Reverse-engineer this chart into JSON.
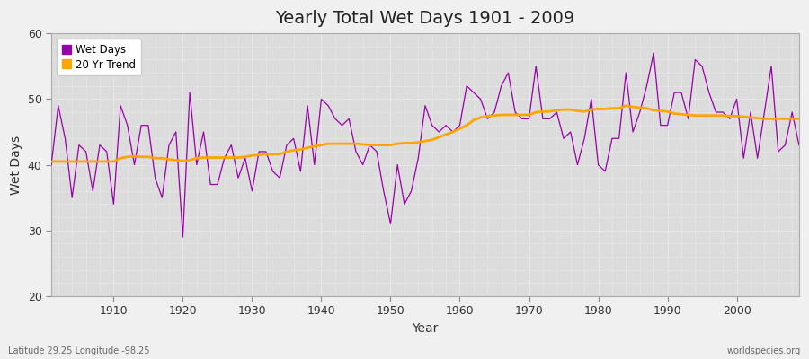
{
  "title": "Yearly Total Wet Days 1901 - 2009",
  "xlabel": "Year",
  "ylabel": "Wet Days",
  "footnote_left": "Latitude 29.25 Longitude -98.25",
  "footnote_right": "worldspecies.org",
  "wet_days_color": "#9900aa",
  "trend_color": "#ffa500",
  "plot_bg_color": "#dcdcdc",
  "fig_bg_color": "#f0f0f0",
  "ylim": [
    20,
    60
  ],
  "yticks": [
    20,
    30,
    40,
    50,
    60
  ],
  "xlim": [
    1901,
    2009
  ],
  "xticks": [
    1910,
    1920,
    1930,
    1940,
    1950,
    1960,
    1970,
    1980,
    1990,
    2000
  ],
  "years": [
    1901,
    1902,
    1903,
    1904,
    1905,
    1906,
    1907,
    1908,
    1909,
    1910,
    1911,
    1912,
    1913,
    1914,
    1915,
    1916,
    1917,
    1918,
    1919,
    1920,
    1921,
    1922,
    1923,
    1924,
    1925,
    1926,
    1927,
    1928,
    1929,
    1930,
    1931,
    1932,
    1933,
    1934,
    1935,
    1936,
    1937,
    1938,
    1939,
    1940,
    1941,
    1942,
    1943,
    1944,
    1945,
    1946,
    1947,
    1948,
    1949,
    1950,
    1951,
    1952,
    1953,
    1954,
    1955,
    1956,
    1957,
    1958,
    1959,
    1960,
    1961,
    1962,
    1963,
    1964,
    1965,
    1966,
    1967,
    1968,
    1969,
    1970,
    1971,
    1972,
    1973,
    1974,
    1975,
    1976,
    1977,
    1978,
    1979,
    1980,
    1981,
    1982,
    1983,
    1984,
    1985,
    1986,
    1987,
    1988,
    1989,
    1990,
    1991,
    1992,
    1993,
    1994,
    1995,
    1996,
    1997,
    1998,
    1999,
    2000,
    2001,
    2002,
    2003,
    2004,
    2005,
    2006,
    2007,
    2008,
    2009
  ],
  "wet_days": [
    40,
    49,
    44,
    35,
    43,
    42,
    36,
    43,
    42,
    34,
    49,
    46,
    40,
    46,
    46,
    38,
    35,
    43,
    45,
    29,
    51,
    40,
    45,
    37,
    37,
    41,
    43,
    38,
    41,
    36,
    42,
    42,
    39,
    38,
    43,
    44,
    39,
    49,
    40,
    50,
    49,
    47,
    46,
    47,
    42,
    40,
    43,
    42,
    36,
    31,
    40,
    34,
    36,
    41,
    49,
    46,
    45,
    46,
    45,
    46,
    52,
    51,
    50,
    47,
    48,
    52,
    54,
    48,
    47,
    47,
    55,
    47,
    47,
    48,
    44,
    45,
    40,
    44,
    50,
    40,
    39,
    44,
    44,
    54,
    45,
    48,
    52,
    57,
    46,
    46,
    51,
    51,
    47,
    56,
    55,
    51,
    48,
    48,
    47,
    50,
    41,
    48,
    41,
    48,
    55,
    42,
    43,
    48,
    43
  ],
  "trend": [
    40.5,
    40.5,
    40.5,
    40.5,
    40.5,
    40.5,
    40.5,
    40.5,
    40.5,
    40.5,
    41.0,
    41.2,
    41.3,
    41.2,
    41.2,
    41.0,
    41.0,
    40.8,
    40.7,
    40.6,
    40.7,
    41.0,
    41.1,
    41.1,
    41.1,
    41.1,
    41.1,
    41.1,
    41.2,
    41.4,
    41.5,
    41.6,
    41.6,
    41.6,
    42.0,
    42.2,
    42.3,
    42.6,
    42.8,
    43.0,
    43.2,
    43.2,
    43.2,
    43.2,
    43.2,
    43.1,
    43.0,
    43.0,
    43.0,
    43.0,
    43.2,
    43.3,
    43.3,
    43.4,
    43.6,
    43.8,
    44.2,
    44.6,
    45.0,
    45.5,
    46.0,
    46.8,
    47.2,
    47.4,
    47.5,
    47.6,
    47.6,
    47.6,
    47.6,
    47.6,
    48.0,
    48.1,
    48.1,
    48.3,
    48.4,
    48.4,
    48.2,
    48.1,
    48.4,
    48.5,
    48.5,
    48.6,
    48.6,
    49.0,
    48.8,
    48.7,
    48.6,
    48.3,
    48.2,
    48.1,
    47.8,
    47.7,
    47.6,
    47.5,
    47.5,
    47.5,
    47.5,
    47.5,
    47.4,
    47.4,
    47.3,
    47.2,
    47.1,
    47.0,
    47.0,
    47.0,
    47.0,
    47.0,
    47.0
  ]
}
